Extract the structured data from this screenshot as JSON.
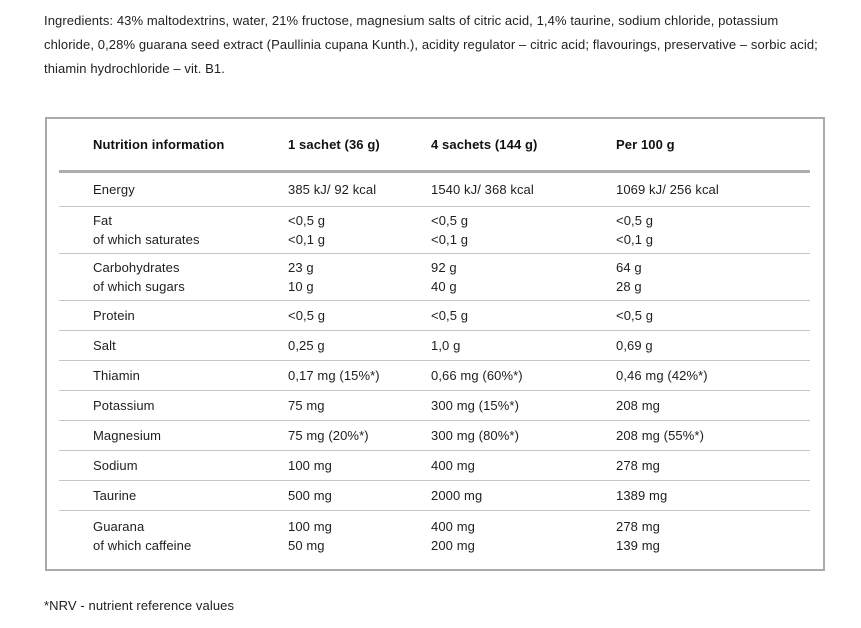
{
  "page": {
    "ingredients": "Ingredients: 43% maltodextrins, water, 21% fructose, magnesium salts of citric acid, 1,4% taurine, sodium chloride, potassium chloride, 0,28% guarana seed extract (Paullinia cupana Kunth.), acidity regulator – citric acid; flavourings, preservative – sorbic acid; thiamin hydrochloride – vit. B1.",
    "footnote": "*NRV - nutrient reference values"
  },
  "colors": {
    "text": "#1e1e1e",
    "panel_border": "#aaaaaa",
    "header_rule": "#adadad",
    "row_rule": "#c6c6c6"
  },
  "nutrition_table": {
    "header": [
      "Nutrition information",
      "1 sachet (36 g)",
      "4 sachets (144 g)",
      "Per 100 g"
    ],
    "rows": [
      {
        "cells": [
          [
            "Energy"
          ],
          [
            "385 kJ/ 92 kcal"
          ],
          [
            "1540 kJ/ 368 kcal"
          ],
          [
            "1069 kJ/ 256 kcal"
          ]
        ]
      },
      {
        "cells": [
          [
            "Fat",
            "of which saturates"
          ],
          [
            "<0,5 g",
            "<0,1 g"
          ],
          [
            "<0,5 g",
            "<0,1 g"
          ],
          [
            "<0,5 g",
            "<0,1 g"
          ]
        ]
      },
      {
        "cells": [
          [
            "Carbohydrates",
            "of which sugars"
          ],
          [
            "23 g",
            "10 g"
          ],
          [
            "92 g",
            "40 g"
          ],
          [
            "64 g",
            "28 g"
          ]
        ]
      },
      {
        "cells": [
          [
            "Protein"
          ],
          [
            "<0,5 g"
          ],
          [
            "<0,5 g"
          ],
          [
            "<0,5 g"
          ]
        ]
      },
      {
        "cells": [
          [
            "Salt"
          ],
          [
            "0,25 g"
          ],
          [
            "1,0 g"
          ],
          [
            "0,69 g"
          ]
        ]
      },
      {
        "cells": [
          [
            "Thiamin"
          ],
          [
            "0,17 mg (15%*)"
          ],
          [
            "0,66 mg (60%*)"
          ],
          [
            "0,46 mg (42%*)"
          ]
        ]
      },
      {
        "cells": [
          [
            "Potassium"
          ],
          [
            "75 mg"
          ],
          [
            "300 mg (15%*)"
          ],
          [
            "208 mg"
          ]
        ]
      },
      {
        "cells": [
          [
            "Magnesium"
          ],
          [
            "75 mg (20%*)"
          ],
          [
            "300 mg (80%*)"
          ],
          [
            "208 mg (55%*)"
          ]
        ]
      },
      {
        "cells": [
          [
            "Sodium"
          ],
          [
            "100 mg"
          ],
          [
            "400 mg"
          ],
          [
            "278 mg"
          ]
        ]
      },
      {
        "cells": [
          [
            "Taurine"
          ],
          [
            "500 mg"
          ],
          [
            "2000 mg"
          ],
          [
            "1389 mg"
          ]
        ]
      },
      {
        "cells": [
          [
            "Guarana",
            "of which caffeine"
          ],
          [
            "100 mg",
            "50 mg"
          ],
          [
            "400 mg",
            "200 mg"
          ],
          [
            "278 mg",
            "139 mg"
          ]
        ]
      }
    ]
  }
}
